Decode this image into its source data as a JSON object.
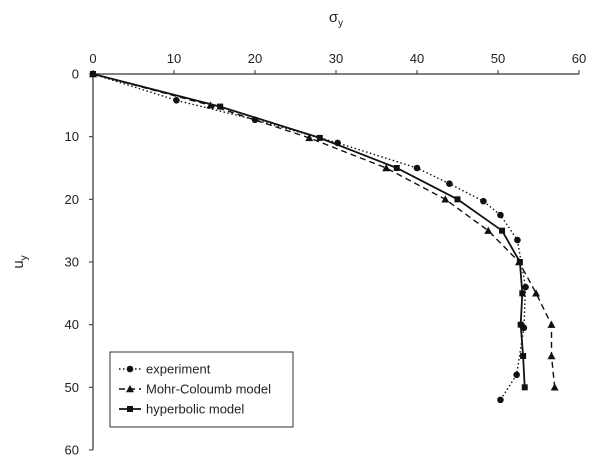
{
  "chart_data": {
    "type": "line",
    "xlabel": "σ",
    "xlabel_sub": "y",
    "ylabel": "u",
    "ylabel_sub": "y",
    "xlim": [
      0,
      60
    ],
    "ylim": [
      0,
      60
    ],
    "x_axis_position": "top",
    "y_axis_inverted": true,
    "x_ticks": [
      0,
      10,
      20,
      30,
      40,
      50,
      60
    ],
    "y_ticks": [
      0,
      10,
      20,
      30,
      40,
      50,
      60
    ],
    "grid": false,
    "legend_position": "bottom-left",
    "series": [
      {
        "name": "experiment",
        "line_style": "dotted",
        "marker": "circle",
        "points": [
          [
            0,
            0
          ],
          [
            10.3,
            4.2
          ],
          [
            20,
            7.3
          ],
          [
            30.2,
            11
          ],
          [
            40,
            15
          ],
          [
            44,
            17.5
          ],
          [
            48.2,
            20.3
          ],
          [
            50.3,
            22.5
          ],
          [
            52.4,
            26.5
          ],
          [
            53.4,
            34
          ],
          [
            53.2,
            40.5
          ],
          [
            52.3,
            48
          ],
          [
            50.3,
            52
          ]
        ]
      },
      {
        "name": "Mohr-Coloumb model",
        "line_style": "dashed",
        "marker": "triangle",
        "points": [
          [
            0,
            0
          ],
          [
            14.5,
            5
          ],
          [
            26.7,
            10.2
          ],
          [
            36.2,
            15
          ],
          [
            43.5,
            20
          ],
          [
            48.8,
            25
          ],
          [
            52.6,
            30
          ],
          [
            54.7,
            35
          ],
          [
            56.6,
            40
          ],
          [
            56.6,
            45
          ],
          [
            57,
            50
          ]
        ]
      },
      {
        "name": "hyperbolic model",
        "line_style": "solid",
        "marker": "square",
        "points": [
          [
            0,
            0
          ],
          [
            15.7,
            5.2
          ],
          [
            28,
            10.2
          ],
          [
            37.5,
            15
          ],
          [
            45,
            20
          ],
          [
            50.5,
            25
          ],
          [
            52.7,
            30
          ],
          [
            53,
            35
          ],
          [
            52.8,
            40
          ],
          [
            53.1,
            45
          ],
          [
            53.3,
            50
          ]
        ]
      }
    ]
  }
}
